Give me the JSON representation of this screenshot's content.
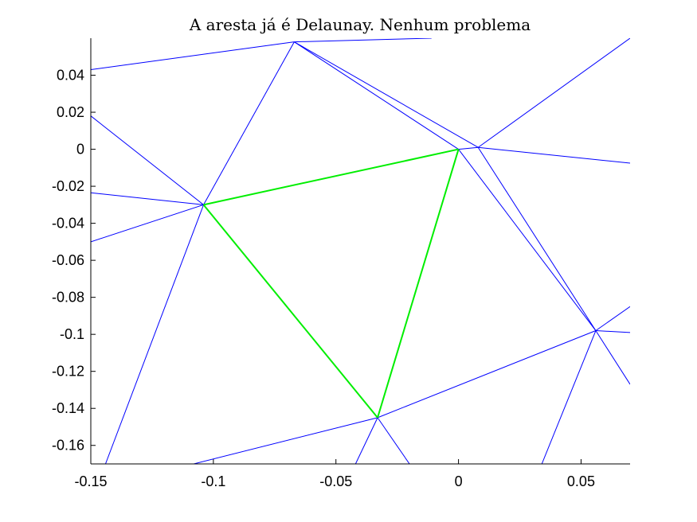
{
  "chart_data": {
    "type": "line",
    "title": "A aresta já é Delaunay. Nenhum problema",
    "xlabel": "",
    "ylabel": "",
    "xlim": [
      -0.15,
      0.07
    ],
    "ylim": [
      -0.17,
      0.06
    ],
    "x_ticks": [
      -0.15,
      -0.1,
      -0.05,
      0,
      0.05
    ],
    "x_tick_labels": [
      "-0.15",
      "-0.1",
      "-0.05",
      "0",
      "0.05"
    ],
    "y_ticks": [
      0.04,
      0.02,
      0,
      -0.02,
      -0.04,
      -0.06,
      -0.08,
      -0.1,
      -0.12,
      -0.14,
      -0.16
    ],
    "y_tick_labels": [
      "0.04",
      "0.02",
      "0",
      "-0.02",
      "-0.04",
      "-0.06",
      "-0.08",
      "-0.1",
      "-0.12",
      "-0.14",
      "-0.16"
    ],
    "grid": false,
    "colors": {
      "mesh": "#0000ff",
      "highlight": "#00ee00"
    },
    "series": [
      {
        "style": "mesh",
        "segments": [
          [
            [
              -0.15,
              0.043
            ],
            [
              -0.067,
              0.058
            ]
          ],
          [
            [
              -0.067,
              0.058
            ],
            [
              -0.011,
              0.06
            ]
          ],
          [
            [
              -0.067,
              0.058
            ],
            [
              -0.104,
              -0.03
            ]
          ],
          [
            [
              -0.067,
              0.058
            ],
            [
              0.0,
              0.0
            ]
          ],
          [
            [
              -0.067,
              0.058
            ],
            [
              0.008,
              0.001
            ]
          ],
          [
            [
              0.0,
              0.0
            ],
            [
              0.008,
              0.001
            ]
          ],
          [
            [
              0.008,
              0.001
            ],
            [
              0.07,
              0.06
            ]
          ],
          [
            [
              0.008,
              0.001
            ],
            [
              0.07,
              -0.0075
            ]
          ],
          [
            [
              0.0,
              0.0
            ],
            [
              0.056,
              -0.098
            ]
          ],
          [
            [
              0.008,
              0.001
            ],
            [
              0.056,
              -0.098
            ]
          ],
          [
            [
              -0.15,
              0.018
            ],
            [
              -0.104,
              -0.03
            ]
          ],
          [
            [
              -0.15,
              -0.0235
            ],
            [
              -0.104,
              -0.03
            ]
          ],
          [
            [
              -0.15,
              -0.05
            ],
            [
              -0.104,
              -0.03
            ]
          ],
          [
            [
              -0.104,
              -0.03
            ],
            [
              -0.144,
              -0.17
            ]
          ],
          [
            [
              -0.033,
              -0.145
            ],
            [
              0.056,
              -0.098
            ]
          ],
          [
            [
              -0.033,
              -0.145
            ],
            [
              -0.108,
              -0.17
            ]
          ],
          [
            [
              -0.033,
              -0.145
            ],
            [
              -0.042,
              -0.17
            ]
          ],
          [
            [
              -0.033,
              -0.145
            ],
            [
              -0.02,
              -0.17
            ]
          ],
          [
            [
              0.056,
              -0.098
            ],
            [
              0.07,
              -0.085
            ]
          ],
          [
            [
              0.056,
              -0.098
            ],
            [
              0.07,
              -0.099
            ]
          ],
          [
            [
              0.056,
              -0.098
            ],
            [
              0.07,
              -0.127
            ]
          ],
          [
            [
              0.056,
              -0.098
            ],
            [
              0.034,
              -0.17
            ]
          ]
        ]
      },
      {
        "style": "highlight",
        "segments": [
          [
            [
              -0.104,
              -0.03
            ],
            [
              0.0,
              0.0
            ]
          ],
          [
            [
              0.0,
              0.0
            ],
            [
              -0.033,
              -0.145
            ]
          ],
          [
            [
              -0.033,
              -0.145
            ],
            [
              -0.104,
              -0.03
            ]
          ]
        ]
      }
    ]
  }
}
